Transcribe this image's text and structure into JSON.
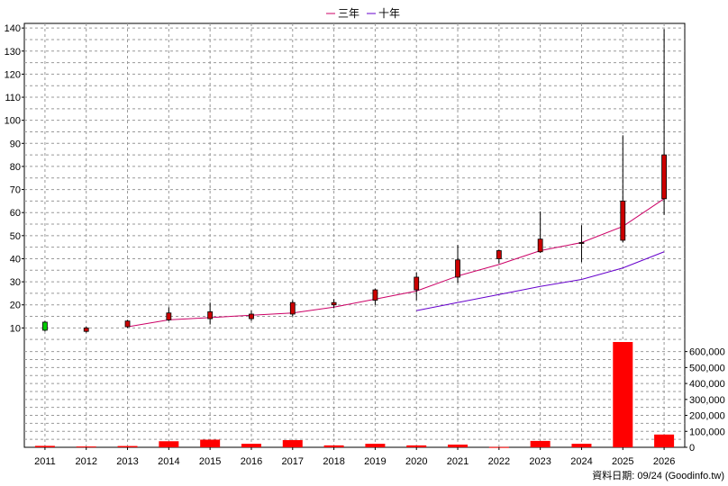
{
  "chart_data": {
    "type": "candlestick+line+bar",
    "legend": [
      {
        "name": "三年",
        "color": "#cc0066"
      },
      {
        "name": "十年",
        "color": "#6600cc"
      }
    ],
    "x_categories": [
      "2011",
      "2012",
      "2013",
      "2014",
      "2015",
      "2016",
      "2017",
      "2018",
      "2019",
      "2020",
      "2021",
      "2022",
      "2023",
      "2024",
      "2025",
      "2026"
    ],
    "price_axis": {
      "ticks": [
        10,
        20,
        30,
        40,
        50,
        60,
        70,
        80,
        90,
        100,
        110,
        120,
        130,
        140
      ],
      "ylim": [
        0,
        142
      ]
    },
    "volume_axis": {
      "ticks": [
        "0",
        "100,000",
        "200,000",
        "300,000",
        "400,000",
        "500,000",
        "600,000"
      ],
      "ylim": [
        0,
        660000
      ]
    },
    "candles": [
      {
        "year": "2011",
        "open": 9,
        "close": 12.5,
        "high": 13,
        "low": 8.5,
        "up": true
      },
      {
        "year": "2012",
        "open": 10,
        "close": 8.5,
        "high": 10.5,
        "low": 8,
        "up": false
      },
      {
        "year": "2013",
        "open": 13,
        "close": 10.5,
        "high": 13.5,
        "low": 10,
        "up": false
      },
      {
        "year": "2014",
        "open": 16.5,
        "close": 13.5,
        "high": 19,
        "low": 13,
        "up": false
      },
      {
        "year": "2015",
        "open": 17,
        "close": 14,
        "high": 21,
        "low": 11.5,
        "up": false
      },
      {
        "year": "2016",
        "open": 16,
        "close": 14,
        "high": 17.5,
        "low": 13,
        "up": false
      },
      {
        "year": "2017",
        "open": 21,
        "close": 16,
        "high": 22,
        "low": 15,
        "up": false
      },
      {
        "year": "2018",
        "open": 21,
        "close": 20,
        "high": 22.5,
        "low": 18.5,
        "up": false
      },
      {
        "year": "2019",
        "open": 26.5,
        "close": 22,
        "high": 27,
        "low": 20,
        "up": false
      },
      {
        "year": "2020",
        "open": 32,
        "close": 26.5,
        "high": 34,
        "low": 22,
        "up": false
      },
      {
        "year": "2021",
        "open": 39.5,
        "close": 32,
        "high": 46,
        "low": 29.5,
        "up": false
      },
      {
        "year": "2022",
        "open": 43.5,
        "close": 40,
        "high": 44,
        "low": 38,
        "up": false
      },
      {
        "year": "2023",
        "open": 48.5,
        "close": 43,
        "high": 60.5,
        "low": 42.5,
        "up": false
      },
      {
        "year": "2024",
        "open": 47,
        "close": 47,
        "high": 54.5,
        "low": 38.5,
        "up": false
      },
      {
        "year": "2025",
        "open": 65,
        "close": 48,
        "high": 93.5,
        "low": 47,
        "up": false
      },
      {
        "year": "2026",
        "open": 85,
        "close": 66,
        "high": 139.5,
        "low": 59,
        "up": false
      }
    ],
    "series": [
      {
        "name": "三年",
        "color": "#cc0066",
        "start": "2013",
        "values": [
          10.5,
          13.5,
          14.5,
          15.5,
          16.5,
          19,
          22.5,
          26,
          32.5,
          37.5,
          43.5,
          47,
          54,
          66
        ]
      },
      {
        "name": "十年",
        "color": "#6600cc",
        "start": "2020",
        "values": [
          17.5,
          21,
          24.5,
          28,
          31,
          36,
          43
        ]
      }
    ],
    "volume": [
      9000,
      5000,
      8000,
      38000,
      48000,
      22000,
      45000,
      12000,
      22000,
      12000,
      17000,
      2000,
      40000,
      22000,
      660000,
      80000
    ],
    "colors": {
      "up": "#00cc00",
      "down": "#cc0000",
      "volume_bar": "#ff0000",
      "grid": "#999999",
      "frame": "#000000"
    }
  },
  "footer": {
    "source_label": "資料日期: 09/24 (Goodinfo.tw)"
  }
}
